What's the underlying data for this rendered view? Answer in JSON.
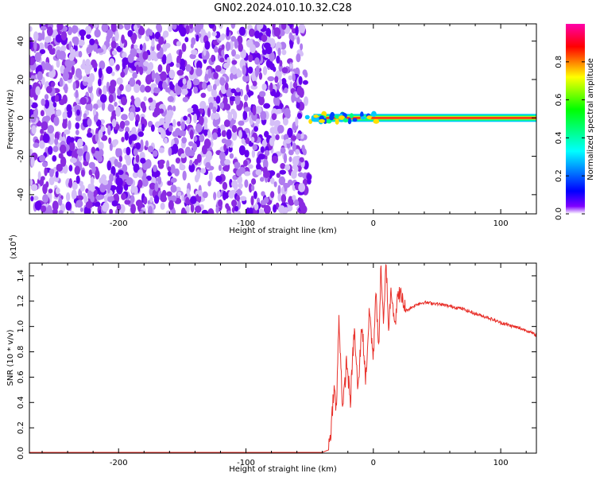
{
  "title": "GN02.2024.010.10.32.C28",
  "chart_data": [
    {
      "type": "heatmap",
      "panel": "top",
      "xlabel": "Height of straight line (km)",
      "ylabel": "Frequency (Hz)",
      "xlim": [
        -270,
        128
      ],
      "ylim": [
        -50,
        49
      ],
      "x_ticks": [
        -200,
        -100,
        0,
        100
      ],
      "y_ticks": [
        -40,
        -20,
        0,
        20,
        40
      ],
      "noise_region_x": [
        -270,
        -52
      ],
      "signal_line": {
        "frequency": 0,
        "x_start": -52,
        "x_end": 128
      },
      "colorbar": {
        "label": "Normalized spectral amplitude",
        "range": [
          0,
          1
        ],
        "ticks": [
          0.0,
          0.2,
          0.4,
          0.6,
          0.8
        ],
        "colormap": [
          "#ff00ff",
          "#ff0000",
          "#ffff00",
          "#00ff00",
          "#00ffff",
          "#0000ff",
          "#8000ff",
          "#ffffff"
        ]
      },
      "noise_colors": [
        "#6600ee",
        "#8a2be2",
        "#b07cf0",
        "#d5bff8"
      ]
    },
    {
      "type": "line",
      "panel": "bottom",
      "xlabel": "Height of straight line (km)",
      "ylabel": "SNR (10 * v/v)",
      "y_multiplier": "(x10",
      "y_multiplier_exp": "4",
      "y_multiplier_close": ")",
      "xlim": [
        -270,
        128
      ],
      "ylim": [
        0.0,
        1.5
      ],
      "x_ticks": [
        -200,
        -100,
        0,
        100
      ],
      "y_ticks": [
        0.0,
        0.2,
        0.4,
        0.6,
        0.8,
        1.0,
        1.2,
        1.4
      ],
      "line_color": "#e8302a",
      "x": [
        -270,
        -200,
        -100,
        -40,
        -35,
        -33,
        -31,
        -29,
        -27,
        -24,
        -21,
        -18,
        -15,
        -12,
        -9,
        -6,
        -3,
        0,
        2,
        4,
        6,
        8,
        10,
        12,
        14,
        17,
        20,
        25,
        30,
        35,
        40,
        50,
        60,
        70,
        80,
        90,
        100,
        110,
        120,
        128
      ],
      "values": [
        0.0,
        0.0,
        0.0,
        0.0,
        0.02,
        0.18,
        0.5,
        0.3,
        1.05,
        0.3,
        0.7,
        0.38,
        0.95,
        0.45,
        1.0,
        0.55,
        1.1,
        0.7,
        1.3,
        0.75,
        1.45,
        0.95,
        1.49,
        0.95,
        1.28,
        1.0,
        1.25,
        1.12,
        1.15,
        1.18,
        1.19,
        1.18,
        1.16,
        1.14,
        1.1,
        1.07,
        1.03,
        1.0,
        0.97,
        0.93
      ]
    }
  ]
}
